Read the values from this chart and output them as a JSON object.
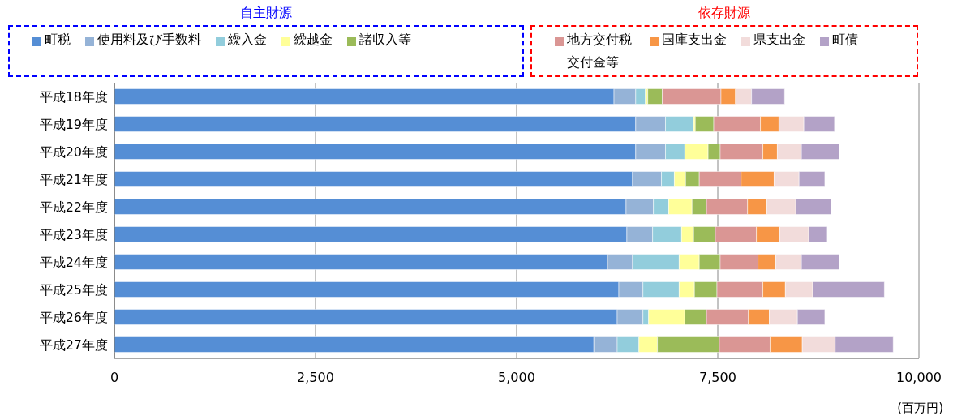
{
  "chart_data": {
    "type": "bar",
    "orientation": "horizontal",
    "stacked": true,
    "categories": [
      "平成18年度",
      "平成19年度",
      "平成20年度",
      "平成21年度",
      "平成22年度",
      "平成23年度",
      "平成24年度",
      "平成25年度",
      "平成26年度",
      "平成27年度"
    ],
    "series": [
      {
        "name": "町税",
        "color": "#558ed5",
        "values": [
          6210,
          6480,
          6480,
          6440,
          6360,
          6370,
          6130,
          6270,
          6250,
          5960
        ]
      },
      {
        "name": "使用料及び手数料",
        "color": "#95b3d7",
        "values": [
          270,
          370,
          370,
          360,
          340,
          320,
          310,
          300,
          320,
          290
        ]
      },
      {
        "name": "繰入金",
        "color": "#92cddc",
        "values": [
          120,
          350,
          240,
          160,
          190,
          360,
          580,
          450,
          70,
          270
        ]
      },
      {
        "name": "繰越金",
        "color": "#ffff99",
        "values": [
          30,
          20,
          290,
          140,
          290,
          150,
          250,
          190,
          450,
          230
        ]
      },
      {
        "name": "諸収入等",
        "color": "#9bbb59",
        "values": [
          180,
          230,
          150,
          170,
          180,
          270,
          260,
          280,
          270,
          770
        ]
      },
      {
        "name": "地方交付税交付金等",
        "color": "#da9694",
        "values": [
          730,
          580,
          530,
          520,
          510,
          510,
          470,
          570,
          520,
          630
        ]
      },
      {
        "name": "国庫支出金",
        "color": "#f79646",
        "values": [
          180,
          230,
          180,
          410,
          240,
          290,
          220,
          280,
          260,
          400
        ]
      },
      {
        "name": "県支出金",
        "color": "#f2dcdb",
        "values": [
          200,
          310,
          300,
          310,
          360,
          360,
          320,
          340,
          350,
          410
        ]
      },
      {
        "name": "町債",
        "color": "#b3a2c7",
        "values": [
          410,
          380,
          470,
          320,
          440,
          230,
          470,
          890,
          340,
          720
        ]
      }
    ],
    "xlim": [
      0,
      10000
    ],
    "xticks": [
      0,
      {
        "value": 2500,
        "label": "2,500"
      },
      {
        "value": 5000,
        "label": "5,000"
      },
      {
        "value": 7500,
        "label": "7,500"
      },
      {
        "value": 10000,
        "label": "10,000"
      }
    ],
    "grid": "x",
    "legend": "top",
    "annotations": [
      "自主財源",
      "依存財源",
      "(百万円)"
    ]
  }
}
